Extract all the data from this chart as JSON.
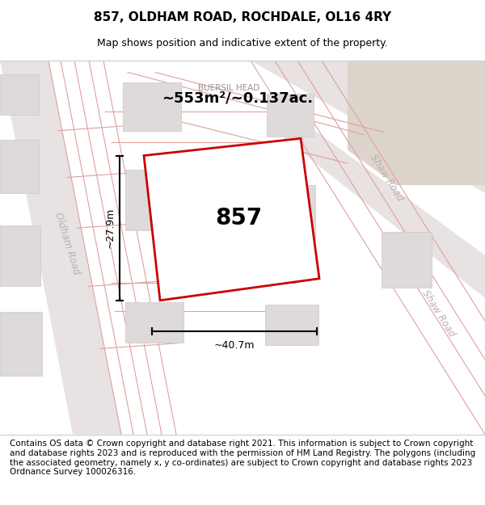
{
  "title": "857, OLDHAM ROAD, ROCHDALE, OL16 4RY",
  "subtitle": "Map shows position and indicative extent of the property.",
  "footer": "Contains OS data © Crown copyright and database right 2021. This information is subject to Crown copyright and database rights 2023 and is reproduced with the permission of HM Land Registry. The polygons (including the associated geometry, namely x, y co-ordinates) are subject to Crown copyright and database rights 2023 Ordnance Survey 100026316.",
  "area_label": "~553m²/~0.137ac.",
  "width_label": "~40.7m",
  "height_label": "~27.9m",
  "property_number": "857",
  "map_bg_color": "#f2eeee",
  "road_line_color": "#e0a0a0",
  "property_fill": "#ffffff",
  "property_outline": "#cc0000",
  "title_fontsize": 11,
  "subtitle_fontsize": 9,
  "footer_fontsize": 7.5
}
